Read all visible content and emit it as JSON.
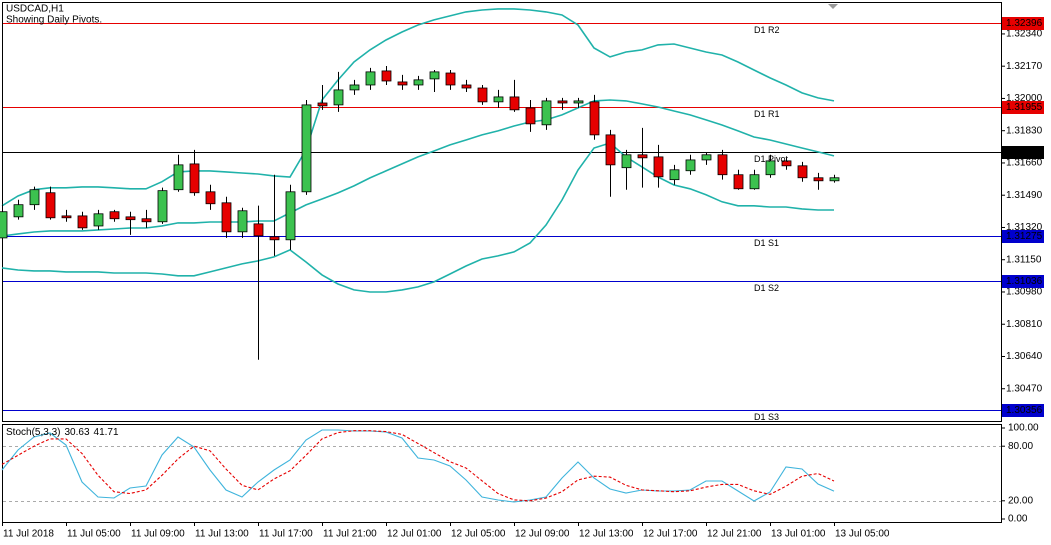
{
  "chart_data": {
    "type": "candlestick",
    "title": "USDCAD,H1",
    "subtitle": "Showing Daily Pivots.",
    "categories": [
      "11 Jul 2018",
      null,
      null,
      null,
      "11 Jul 05:00",
      null,
      null,
      null,
      "11 Jul 09:00",
      null,
      null,
      null,
      "11 Jul 13:00",
      null,
      null,
      null,
      "11 Jul 17:00",
      null,
      null,
      null,
      "11 Jul 21:00",
      null,
      null,
      null,
      "12 Jul 01:00",
      null,
      null,
      null,
      "12 Jul 05:00",
      null,
      null,
      null,
      "12 Jul 09:00",
      null,
      null,
      null,
      "12 Jul 13:00",
      null,
      null,
      null,
      "12 Jul 17:00",
      null,
      null,
      null,
      "12 Jul 21:00",
      null,
      null,
      null,
      "13 Jul 01:00",
      null,
      null,
      null,
      "13 Jul 05:00"
    ],
    "open": [
      1.31265,
      1.31376,
      1.3144,
      1.31503,
      1.31381,
      1.31381,
      1.31328,
      1.31403,
      1.31376,
      1.31366,
      1.3135,
      1.31519,
      1.31655,
      1.31508,
      1.3145,
      1.31297,
      1.31339,
      1.31271,
      1.31255,
      1.31508,
      1.31976,
      1.31966,
      1.32045,
      1.32071,
      1.32145,
      1.32087,
      1.32071,
      1.32103,
      1.32134,
      1.32071,
      1.32055,
      1.31982,
      1.32008,
      1.3195,
      1.31861,
      1.31987,
      1.31976,
      1.31982,
      1.31808,
      1.31635,
      1.31703,
      1.31692,
      1.31572,
      1.31619,
      1.31676,
      1.31703,
      1.31598,
      1.31524,
      1.31598,
      1.31671,
      1.31645,
      1.31582,
      1.31566
    ],
    "high": [
      1.3144,
      1.31466,
      1.31535,
      1.31535,
      1.31413,
      1.31403,
      1.31413,
      1.31413,
      1.31403,
      1.31413,
      1.3153,
      1.31703,
      1.31729,
      1.31545,
      1.31482,
      1.31424,
      1.31435,
      1.31598,
      1.31545,
      1.31992,
      1.32071,
      1.3214,
      1.32098,
      1.32161,
      1.32171,
      1.32124,
      1.32119,
      1.3215,
      1.3215,
      1.32098,
      1.32071,
      1.32045,
      1.32098,
      1.31992,
      1.32003,
      1.32003,
      1.32003,
      1.32019,
      1.31834,
      1.31729,
      1.31845,
      1.31755,
      1.3165,
      1.31703,
      1.31718,
      1.31729,
      1.31624,
      1.31624,
      1.31703,
      1.31687,
      1.31666,
      1.31608,
      1.31598
    ],
    "low": [
      1.31255,
      1.31361,
      1.31413,
      1.31361,
      1.3135,
      1.31307,
      1.31307,
      1.3135,
      1.31281,
      1.31318,
      1.31339,
      1.31508,
      1.31487,
      1.31413,
      1.31265,
      1.31265,
      1.30623,
      1.3117,
      1.31202,
      1.31492,
      1.3194,
      1.31929,
      1.32019,
      1.32045,
      1.32071,
      1.32045,
      1.32045,
      1.32034,
      1.32045,
      1.32034,
      1.31966,
      1.3195,
      1.31929,
      1.31824,
      1.31834,
      1.3194,
      1.3195,
      1.31782,
      1.31482,
      1.31519,
      1.3153,
      1.3153,
      1.31545,
      1.31598,
      1.3165,
      1.31572,
      1.31519,
      1.31519,
      1.31582,
      1.31624,
      1.31561,
      1.31519,
      1.31556
    ],
    "close": [
      1.31403,
      1.3144,
      1.31519,
      1.31371,
      1.31371,
      1.31318,
      1.31392,
      1.31366,
      1.31361,
      1.3135,
      1.31514,
      1.3165,
      1.31503,
      1.31445,
      1.31297,
      1.31408,
      1.31276,
      1.31255,
      1.31508,
      1.31966,
      1.31961,
      1.32045,
      1.32071,
      1.3214,
      1.32092,
      1.32071,
      1.32098,
      1.3214,
      1.32071,
      1.32055,
      1.31982,
      1.32008,
      1.3194,
      1.31866,
      1.31987,
      1.31976,
      1.31987,
      1.31808,
      1.3165,
      1.31703,
      1.31687,
      1.31587,
      1.31624,
      1.31676,
      1.31703,
      1.31598,
      1.31524,
      1.31598,
      1.31671,
      1.31645,
      1.31582,
      1.31566,
      1.31582
    ],
    "up_color": "#3cc24f",
    "down_color": "#e60000",
    "bands": [
      {
        "color": "#20b2aa",
        "values": [
          1.31434,
          1.31486,
          1.31519,
          1.31529,
          1.31529,
          1.31534,
          1.31534,
          1.31529,
          1.31524,
          1.31524,
          1.31561,
          1.31613,
          1.31618,
          1.31618,
          1.31613,
          1.31607,
          1.31602,
          1.31592,
          1.31586,
          1.31729,
          1.31992,
          1.32097,
          1.32192,
          1.32256,
          1.32308,
          1.3235,
          1.32387,
          1.32414,
          1.32435,
          1.32456,
          1.32466,
          1.32472,
          1.32472,
          1.32466,
          1.32456,
          1.3244,
          1.32387,
          1.32266,
          1.32219,
          1.32245,
          1.32256,
          1.32282,
          1.32287,
          1.32266,
          1.32245,
          1.32229,
          1.32192,
          1.3215,
          1.32108,
          1.32071,
          1.32029,
          1.32003,
          1.31987
        ]
      },
      {
        "color": "#20b2aa",
        "values": [
          1.31275,
          1.31286,
          1.31296,
          1.31302,
          1.31302,
          1.31302,
          1.31307,
          1.31312,
          1.31317,
          1.31317,
          1.31328,
          1.31344,
          1.31344,
          1.31349,
          1.31349,
          1.31349,
          1.31354,
          1.31354,
          1.31397,
          1.31439,
          1.3147,
          1.31502,
          1.31539,
          1.31581,
          1.31618,
          1.31655,
          1.31692,
          1.31723,
          1.31755,
          1.31781,
          1.31808,
          1.31829,
          1.31855,
          1.31876,
          1.31887,
          1.31913,
          1.3195,
          1.31987,
          1.31992,
          1.31987,
          1.31971,
          1.31955,
          1.31934,
          1.31913,
          1.31887,
          1.3186,
          1.31829,
          1.31797,
          1.31781,
          1.3176,
          1.31739,
          1.31718,
          1.31697
        ]
      },
      {
        "color": "#20b2aa",
        "values": [
          1.31107,
          1.31096,
          1.31091,
          1.31091,
          1.31086,
          1.31086,
          1.31086,
          1.3108,
          1.3108,
          1.3108,
          1.31075,
          1.31065,
          1.31065,
          1.31086,
          1.31107,
          1.31128,
          1.31144,
          1.31165,
          1.31202,
          1.31138,
          1.3107,
          1.31022,
          1.30991,
          1.3098,
          1.3098,
          1.30991,
          1.31007,
          1.31033,
          1.31075,
          1.31117,
          1.31154,
          1.3117,
          1.31191,
          1.31238,
          1.31333,
          1.31465,
          1.31623,
          1.31739,
          1.31765,
          1.31692,
          1.31639,
          1.31586,
          1.31544,
          1.31524,
          1.31492,
          1.31455,
          1.31434,
          1.31434,
          1.31428,
          1.31428,
          1.31418,
          1.31412,
          1.31412
        ]
      }
    ],
    "pivots": [
      {
        "label": "D1 R2",
        "value": 1.32396,
        "color": "#e60000"
      },
      {
        "label": "D1 R1",
        "value": 1.31955,
        "color": "#e60000"
      },
      {
        "label": "D1 Pivot",
        "value": 1.31716,
        "color": "#000000"
      },
      {
        "label": "D1 S1",
        "value": 1.31275,
        "color": "#0000cd"
      },
      {
        "label": "D1 S2",
        "value": 1.31036,
        "color": "#0000cd"
      },
      {
        "label": "D1 S3",
        "value": 1.30356,
        "color": "#0000cd"
      }
    ],
    "ylim": [
      1.303,
      1.32503
    ],
    "yticks": [
      {
        "value": 1.3234,
        "label": "1.32340"
      },
      {
        "value": 1.3217,
        "label": "1.32170"
      },
      {
        "value": 1.32,
        "label": "1.32000"
      },
      {
        "value": 1.3183,
        "label": "1.31830"
      },
      {
        "value": 1.3166,
        "label": "1.31660"
      },
      {
        "value": 1.3149,
        "label": "1.31490"
      },
      {
        "value": 1.3132,
        "label": "1.31320"
      },
      {
        "value": 1.3115,
        "label": "1.31150"
      },
      {
        "value": 1.3098,
        "label": "1.30980"
      },
      {
        "value": 1.3081,
        "label": "1.30810"
      },
      {
        "value": 1.3064,
        "label": "1.30640"
      },
      {
        "value": 1.3047,
        "label": "1.30470"
      }
    ],
    "indicator": {
      "title": "Stoch(5,3,3)",
      "series": [
        {
          "color": "#3fb4dc",
          "dashed": false,
          "values": [
            53.8,
            75.8,
            90.1,
            94.5,
            81.3,
            40.7,
            24.2,
            23.1,
            34.1,
            36.3,
            70.3,
            90.1,
            79.1,
            53.8,
            31.9,
            24.2,
            40.7,
            53.8,
            64.8,
            86.8,
            97.8,
            97.8,
            96.7,
            96.7,
            95.6,
            89.0,
            67.0,
            64.8,
            58.2,
            42.9,
            24.2,
            20.9,
            18.7,
            20.9,
            24.2,
            45.1,
            62.6,
            45.1,
            33.0,
            28.6,
            31.9,
            30.8,
            30.8,
            31.9,
            41.8,
            41.8,
            30.8,
            19.8,
            29.7,
            57.1,
            54.9,
            38.5,
            30.63
          ]
        },
        {
          "color": "#e60000",
          "dashed": true,
          "values": [
            60,
            70,
            80,
            88,
            88,
            72,
            48,
            30,
            28,
            32,
            48,
            66,
            80,
            75,
            55,
            37,
            32,
            44,
            53,
            70,
            88,
            95,
            97,
            97,
            96,
            93,
            83,
            73,
            63,
            56,
            42,
            28,
            21,
            20,
            23,
            30,
            43,
            47,
            46,
            37,
            32,
            31,
            30,
            31,
            35,
            38,
            38,
            31,
            27,
            36,
            47,
            50,
            41.71
          ]
        }
      ],
      "levels": [
        80,
        20
      ],
      "ylim": [
        -3.3,
        104.4
      ],
      "yticks": [
        {
          "value": 100,
          "label": "100.00"
        },
        {
          "value": 80,
          "label": "80.00"
        },
        {
          "value": 20,
          "label": "20.00"
        },
        {
          "value": 0,
          "label": "0.00"
        }
      ]
    }
  }
}
